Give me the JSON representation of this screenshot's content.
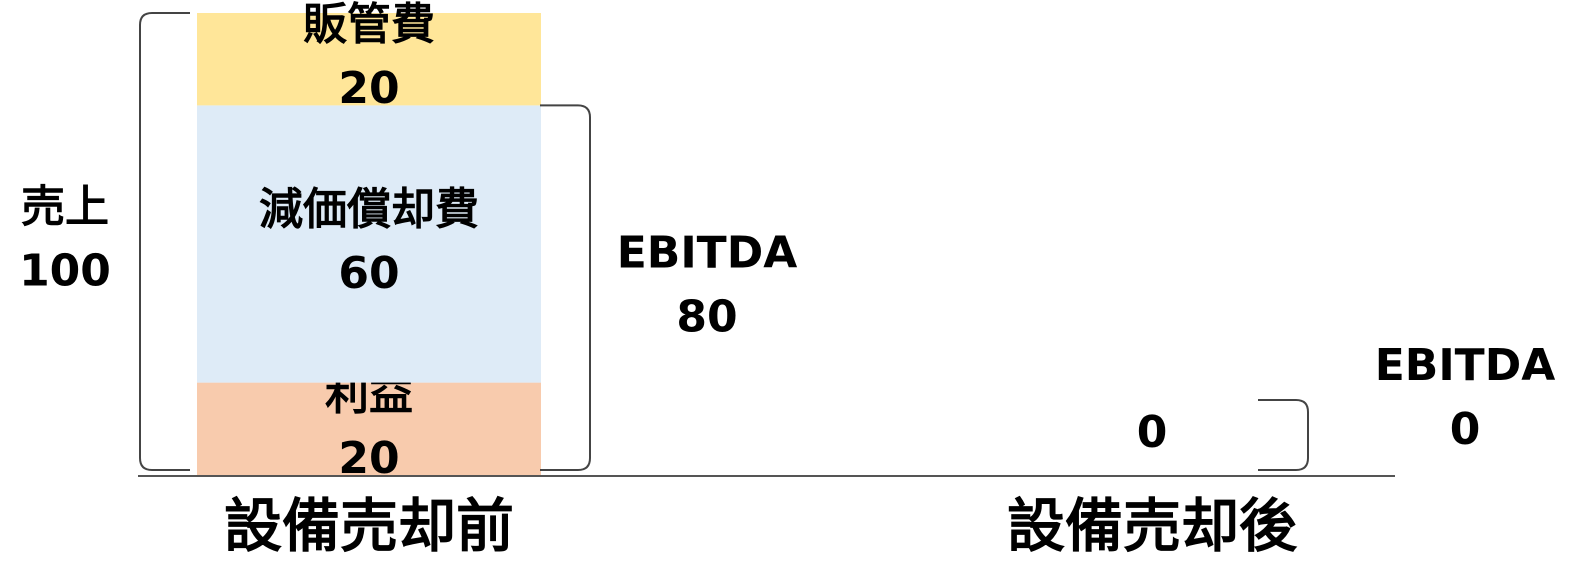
{
  "chart_data": {
    "type": "bar",
    "stacked": true,
    "categories": [
      "設備売却前",
      "設備売却後"
    ],
    "series": [
      {
        "name": "利益",
        "color": "#f8cbad",
        "values": [
          20,
          0
        ]
      },
      {
        "name": "減価償却費",
        "color": "#deebf7",
        "values": [
          60,
          null
        ]
      },
      {
        "name": "販管費",
        "color": "#ffe699",
        "values": [
          20,
          null
        ]
      }
    ],
    "ylim": [
      0,
      100
    ],
    "annotations": [
      {
        "label": "売上",
        "value": 100
      },
      {
        "label": "EBITDA",
        "value": 80
      },
      {
        "label": "EBITDA",
        "value": 0
      }
    ]
  }
}
